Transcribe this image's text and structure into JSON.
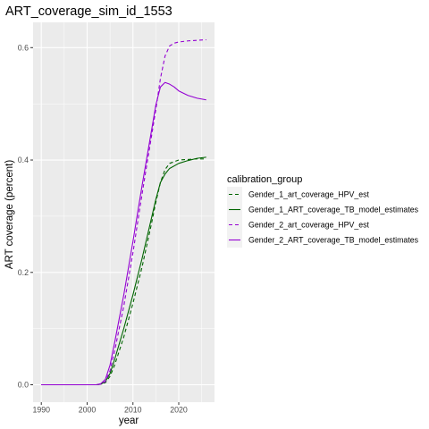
{
  "chart_data": {
    "type": "line",
    "title": "ART_coverage_sim_id_1553",
    "xlabel": "year",
    "ylabel": "ART coverage (percent)",
    "xlim": [
      1988.2,
      2027.8
    ],
    "ylim": [
      -0.031,
      0.645
    ],
    "x_ticks": [
      1990,
      2000,
      2010,
      2020
    ],
    "y_ticks": [
      0.0,
      0.2,
      0.4,
      0.6
    ],
    "y_tick_labels": [
      "0.0",
      "0.2",
      "0.4",
      "0.6"
    ],
    "grid": true,
    "legend": {
      "title": "calibration_group",
      "position": "right"
    },
    "series": [
      {
        "name": "Gender_1_art_coverage_HPV_est",
        "color": "#006400",
        "dash": "dashed",
        "x": [
          1990,
          2000,
          2002,
          2003,
          2004,
          2005,
          2006,
          2008,
          2010,
          2012,
          2014,
          2015,
          2016,
          2017,
          2018,
          2020,
          2022,
          2024,
          2026
        ],
        "y": [
          0.0,
          0.0,
          0.0,
          0.001,
          0.004,
          0.015,
          0.035,
          0.085,
          0.145,
          0.21,
          0.285,
          0.325,
          0.36,
          0.383,
          0.394,
          0.4,
          0.401,
          0.402,
          0.402
        ]
      },
      {
        "name": "Gender_1_ART_coverage_TB_model_estimates",
        "color": "#006400",
        "dash": "solid",
        "x": [
          1990,
          2000,
          2002,
          2003,
          2004,
          2005,
          2006,
          2008,
          2010,
          2012,
          2014,
          2015,
          2016,
          2017,
          2018,
          2020,
          2022,
          2024,
          2026
        ],
        "y": [
          0.0,
          0.0,
          0.0,
          0.001,
          0.006,
          0.02,
          0.045,
          0.1,
          0.16,
          0.225,
          0.295,
          0.33,
          0.36,
          0.375,
          0.385,
          0.394,
          0.399,
          0.403,
          0.405
        ]
      },
      {
        "name": "Gender_2_art_coverage_HPV_est",
        "color": "#9400D3",
        "dash": "dashed",
        "x": [
          1990,
          2000,
          2002,
          2003,
          2004,
          2005,
          2006,
          2008,
          2010,
          2012,
          2014,
          2015,
          2016,
          2017,
          2018,
          2019,
          2020,
          2022,
          2024,
          2026
        ],
        "y": [
          0.0,
          0.0,
          0.0,
          0.001,
          0.006,
          0.025,
          0.06,
          0.14,
          0.235,
          0.34,
          0.44,
          0.49,
          0.545,
          0.585,
          0.603,
          0.608,
          0.61,
          0.612,
          0.613,
          0.614
        ]
      },
      {
        "name": "Gender_2_ART_coverage_TB_model_estimates",
        "color": "#9400D3",
        "dash": "solid",
        "x": [
          1990,
          2000,
          2002,
          2003,
          2004,
          2005,
          2006,
          2008,
          2010,
          2012,
          2014,
          2015,
          2016,
          2017,
          2018,
          2019,
          2020,
          2022,
          2024,
          2026
        ],
        "y": [
          0.0,
          0.0,
          0.0,
          0.002,
          0.01,
          0.035,
          0.075,
          0.16,
          0.255,
          0.355,
          0.45,
          0.498,
          0.53,
          0.538,
          0.535,
          0.53,
          0.523,
          0.515,
          0.51,
          0.507
        ]
      }
    ]
  }
}
